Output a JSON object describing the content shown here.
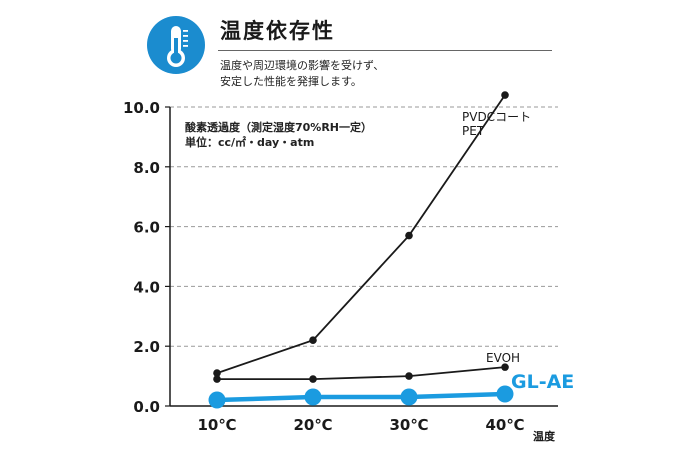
{
  "header": {
    "title": "温度依存性",
    "description": "温度や周辺環境の影響を受けず、\n安定した性能を発揮します。",
    "icon": "thermometer-icon",
    "accent_color": "#1b8ccf"
  },
  "note": {
    "line1": "酸素透過度（測定湿度70%RH一定）",
    "line2": "単位：cc/㎡・day・atm"
  },
  "chart_data": {
    "type": "line",
    "categories": [
      "10℃",
      "20℃",
      "30℃",
      "40℃"
    ],
    "xlabel": "温度",
    "ylabel": "",
    "ylim": [
      0,
      10
    ],
    "y_ticks": [
      "0.0",
      "2.0",
      "4.0",
      "6.0",
      "8.0",
      "10.0"
    ],
    "grid": "horizontal dashed",
    "series": [
      {
        "name": "PVDCコート\nPET",
        "values": [
          1.1,
          2.2,
          5.7,
          10.4
        ],
        "color": "#1a1a1a"
      },
      {
        "name": "EVOH",
        "values": [
          0.9,
          0.9,
          1.0,
          1.3
        ],
        "color": "#1a1a1a"
      },
      {
        "name": "GL-AE",
        "values": [
          0.2,
          0.3,
          0.3,
          0.4
        ],
        "color": "#1b9be0"
      }
    ]
  }
}
